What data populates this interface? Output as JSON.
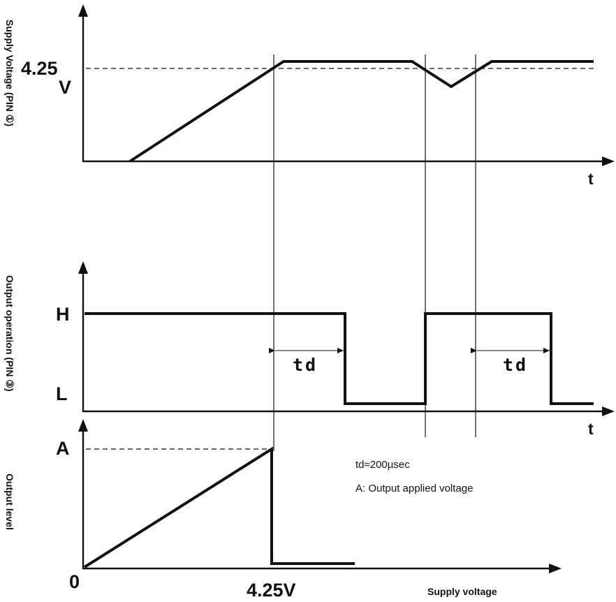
{
  "top_panel": {
    "ylabel": "Supply Voltage (PIN ①)",
    "level_label_value": "4.25",
    "level_label_unit": "V",
    "x_axis_label": "t"
  },
  "middle_panel": {
    "ylabel": "Output operation (PIN ③)",
    "high_label": "H",
    "low_label": "L",
    "delay_label_1": "td",
    "delay_label_2": "td",
    "x_axis_label": "t"
  },
  "bottom_panel": {
    "ylabel": "Output level",
    "peak_label": "A",
    "origin_label": "0",
    "threshold_label": "4.25V",
    "xlabel": "Supply voltage"
  },
  "notes": {
    "td_note": "td≈200µsec",
    "a_note": "A: Output applied voltage"
  }
}
